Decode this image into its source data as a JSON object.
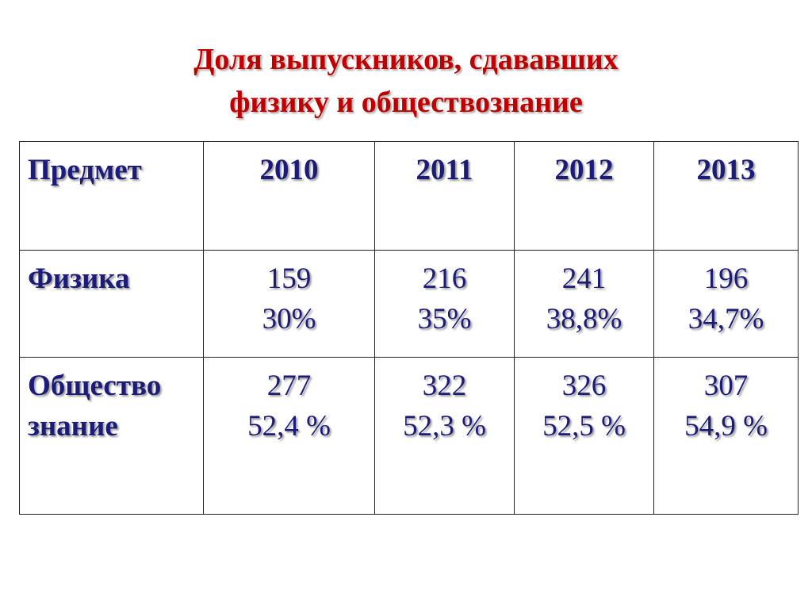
{
  "title": {
    "lines": [
      "Доля выпускников, сдававших",
      "физику и обществознание"
    ]
  },
  "table": {
    "header": [
      "Предмет",
      "2010",
      "2011",
      "2012",
      "2013"
    ],
    "rows": [
      {
        "label": [
          "Физика"
        ],
        "cells": [
          [
            "159",
            "30%"
          ],
          [
            "216",
            "35%"
          ],
          [
            "241",
            "38,8%"
          ],
          [
            "196",
            "34,7%"
          ]
        ]
      },
      {
        "label": [
          "Общество",
          "знание"
        ],
        "cells": [
          [
            "277",
            "52,4 %"
          ],
          [
            "322",
            "52,3 %"
          ],
          [
            "326",
            "52,5 %"
          ],
          [
            "307",
            "54,9 %"
          ]
        ]
      }
    ]
  }
}
